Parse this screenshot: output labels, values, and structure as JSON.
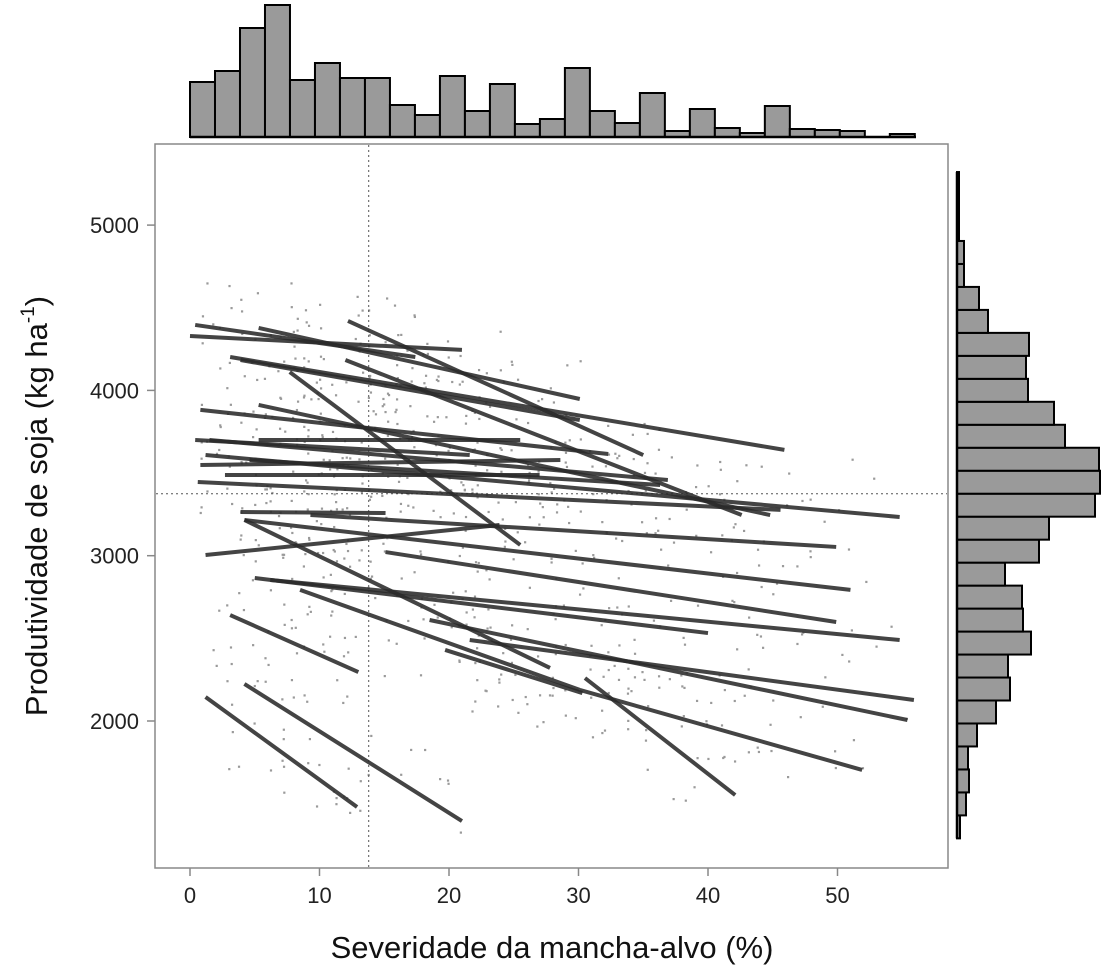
{
  "chart_data": {
    "type": "scatter",
    "title": "",
    "xlabel": "Severidade da mancha-alvo (%)",
    "ylabel": "Produtividade de soja (kg ha",
    "ylabel_sup": "-1",
    "ylabel_tail": ")",
    "xlim": [
      -2.7,
      58.5
    ],
    "ylim": [
      1110,
      5490
    ],
    "x_ticks": [
      "0",
      "10",
      "20",
      "30",
      "40",
      "50"
    ],
    "x_tick_values": [
      0,
      10,
      20,
      30,
      40,
      50
    ],
    "y_ticks": [
      "2000",
      "3000",
      "4000",
      "5000"
    ],
    "y_tick_values": [
      2000,
      3000,
      4000,
      5000
    ],
    "grid": false,
    "reference_lines": {
      "x_mean": 13.8,
      "y_mean": 3375
    },
    "regression_lines": [
      [
        0,
        4329,
        21,
        4245
      ],
      [
        0.4,
        4396,
        17.4,
        4202
      ],
      [
        5.3,
        4378,
        30.1,
        3948
      ],
      [
        12.2,
        4420,
        35,
        3609
      ],
      [
        3.1,
        4202,
        45.9,
        3640
      ],
      [
        0.8,
        3882,
        32.3,
        3615
      ],
      [
        1.5,
        3700,
        36.9,
        3458
      ],
      [
        0.6,
        3446,
        45.6,
        3277
      ],
      [
        5.3,
        3912,
        44.8,
        3246
      ],
      [
        1.2,
        3609,
        54.8,
        3234
      ],
      [
        1.2,
        3004,
        23.9,
        3186
      ],
      [
        3.9,
        3264,
        15.1,
        3258
      ],
      [
        9.3,
        3246,
        49.9,
        3053
      ],
      [
        4.2,
        3216,
        51,
        2793
      ],
      [
        15.1,
        3022,
        49.9,
        2599
      ],
      [
        5,
        2865,
        40,
        2532
      ],
      [
        6.2,
        2853,
        54.8,
        2490
      ],
      [
        4.2,
        3216,
        27.8,
        2321
      ],
      [
        21.6,
        2490,
        55.9,
        2127
      ],
      [
        18.5,
        2611,
        55.4,
        2006
      ],
      [
        3.1,
        2641,
        13,
        2296
      ],
      [
        1.2,
        2145,
        12.9,
        1480
      ],
      [
        4.2,
        2224,
        21,
        1395
      ],
      [
        30.5,
        2260,
        42.1,
        1552
      ],
      [
        30.1,
        2188,
        51.9,
        1704
      ],
      [
        19.7,
        2430,
        30.3,
        2169
      ],
      [
        8.5,
        2793,
        30.1,
        2188
      ],
      [
        5.3,
        3700,
        25.5,
        3700
      ],
      [
        12,
        4184,
        42.6,
        3246
      ],
      [
        7.7,
        4111,
        25.5,
        3065
      ],
      [
        0.4,
        3700,
        21.6,
        3609
      ],
      [
        4.6,
        3579,
        36.3,
        3428
      ],
      [
        0.8,
        3549,
        28.6,
        3579
      ],
      [
        2.7,
        3488,
        27,
        3488
      ],
      [
        3.9,
        4184,
        30.1,
        3821
      ]
    ],
    "x_histogram": {
      "bin_start": 0,
      "bin_width": 1.93,
      "counts": [
        55,
        66,
        109,
        132,
        57,
        74,
        59,
        59,
        32,
        22,
        61,
        26,
        53,
        13,
        18,
        69,
        26,
        14,
        44,
        6,
        28,
        9,
        4,
        31,
        8,
        7,
        6,
        0,
        3
      ]
    },
    "y_histogram": {
      "bin_start": 1290,
      "bin_width": 139,
      "counts": [
        3,
        9,
        12,
        11,
        20,
        39,
        53,
        51,
        74,
        66,
        65,
        48,
        82,
        92,
        138,
        143,
        142,
        108,
        97,
        71,
        69,
        72,
        31,
        22,
        7,
        7,
        2,
        2,
        2
      ]
    },
    "colors": {
      "bar": "#9a9a9a",
      "line": "#2a2a2a",
      "point": "#9a9a9a",
      "frame": "#888888"
    }
  }
}
